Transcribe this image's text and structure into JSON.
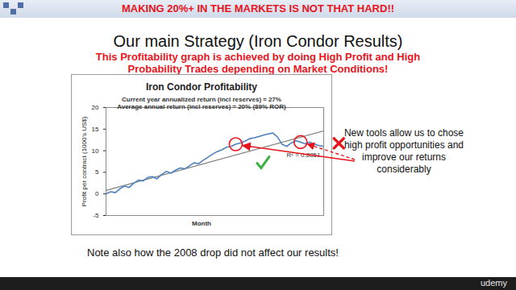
{
  "banner": "MAKING 20%+ IN THE MARKETS IS NOT THAT HARD!!",
  "title": "Our main Strategy (Iron Condor Results)",
  "subtitle": [
    "This Profitability graph is achieved by doing High Profit and High",
    "Probability Trades depending on Market Conditions!"
  ],
  "chart_data": {
    "type": "line",
    "title": "Iron Condor Profitability",
    "subtitle": [
      "Current year annualized return (incl reserves) ≈ 27%",
      "Average annual return (incl reserves) ≈ 20%  (89% ROR)"
    ],
    "x_label": "Month",
    "y_label": "Profit per contract (1000's US$)",
    "x": [
      1,
      2,
      3,
      4,
      5,
      6,
      7,
      8,
      9,
      10,
      11,
      12,
      13,
      14,
      15,
      16,
      17,
      18,
      19,
      20,
      21,
      22,
      23,
      24,
      25,
      26,
      27,
      28,
      29,
      30,
      31,
      32,
      33,
      34,
      35,
      36,
      37,
      38,
      39,
      40,
      41,
      42,
      43,
      44,
      45,
      46,
      47,
      48
    ],
    "series": [
      {
        "color": "#4f81bd",
        "line_style": "solid",
        "values": [
          0,
          0.5,
          0.3,
          1.2,
          1.8,
          1.5,
          2.5,
          3.2,
          3.0,
          3.8,
          4.0,
          3.5,
          4.5,
          5.2,
          4.8,
          5.5,
          6.0,
          5.8,
          6.5,
          7.2,
          7.0,
          7.8,
          8.5,
          9.2,
          9.8,
          10.2,
          10.8,
          11.0,
          11.5,
          11.8,
          12.2,
          12.8,
          13.0,
          13.3,
          13.6,
          13.9,
          14.1,
          13.2,
          11.5,
          11.0,
          11.8,
          12.3,
          12.0,
          11.6,
          12.0,
          11.5,
          11.2,
          11.0
        ]
      },
      {
        "color": "#808080",
        "line_style": "solid",
        "x": [
          1,
          48
        ],
        "values": [
          0.8,
          14.6
        ]
      }
    ],
    "trend_label": "R² = 0.8851",
    "annotations": [
      {
        "x": 29,
        "y": 11.5,
        "marker": "circle",
        "color": "#e8141c"
      },
      {
        "x": 43,
        "y": 12.0,
        "marker": "circle",
        "color": "#e8141c"
      }
    ],
    "xlim": [
      1,
      48
    ],
    "ylim": [
      -5,
      20
    ],
    "yticks": [
      -5,
      0,
      5,
      10,
      15,
      20
    ],
    "grid": false,
    "tick_labels": "y"
  },
  "callout": "New tools allow us to chose high profit opportunities and improve our returns considerably",
  "note": "Note also how the 2008 drop did not affect our results!",
  "watermark": "udemy"
}
